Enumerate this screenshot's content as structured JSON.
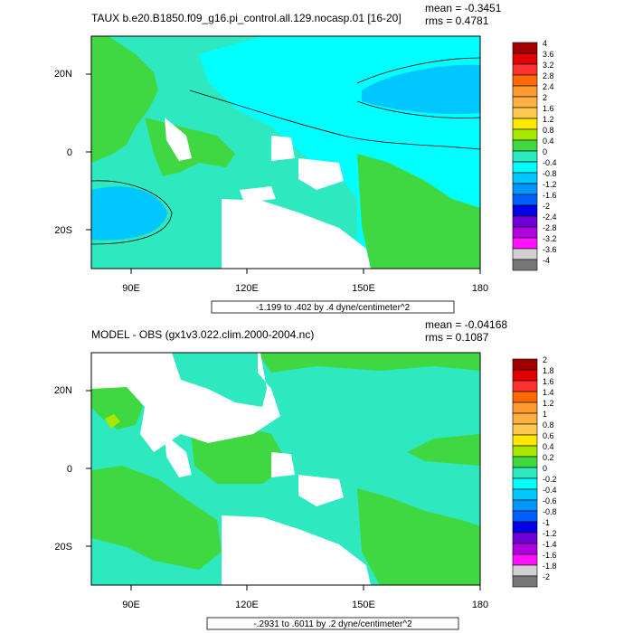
{
  "chart_data": [
    {
      "type": "heatmap",
      "title": "TAUX b.e20.B1850.f09_g16.pi_control.all.129.nocasp.01 [16-20]",
      "stats": [
        "mean = -0.3451",
        "rms = 0.4781"
      ],
      "x_ticks": [
        "90E",
        "120E",
        "150E",
        "180"
      ],
      "y_ticks": [
        "20N",
        "0",
        "20S"
      ],
      "xlim": [
        80,
        180
      ],
      "ylim": [
        -30,
        30
      ],
      "contour_info": "-1.199 to .402 by .4 dyne/centimeter^2",
      "colorbar_labels": [
        "4",
        "3.6",
        "3.2",
        "2.8",
        "2.4",
        "2",
        "1.6",
        "1.2",
        "0.8",
        "0.4",
        "0",
        "-0.4",
        "-0.8",
        "-1.2",
        "-1.6",
        "-2",
        "-2.4",
        "-2.8",
        "-3.2",
        "-3.6",
        "-4"
      ],
      "colorbar_colors": [
        "#a00000",
        "#e00000",
        "#ff3030",
        "#ff6a00",
        "#ff9a30",
        "#ffb040",
        "#ffc850",
        "#ffe800",
        "#a8e800",
        "#40d840",
        "#2ee8c0",
        "#00ffff",
        "#00c8ff",
        "#0098ff",
        "#0060ff",
        "#0000e8",
        "#7000d8",
        "#b000e0",
        "#ff10ff",
        "#d0d0d0",
        "#787878"
      ]
    },
    {
      "type": "heatmap",
      "title": "MODEL - OBS (gx1v3.022.clim.2000-2004.nc)",
      "stats": [
        "mean = -0.04168",
        "rms = 0.1087"
      ],
      "x_ticks": [
        "90E",
        "120E",
        "150E",
        "180"
      ],
      "y_ticks": [
        "20N",
        "0",
        "20S"
      ],
      "xlim": [
        80,
        180
      ],
      "ylim": [
        -30,
        30
      ],
      "contour_info": "-.2931 to .6011 by .2 dyne/centimeter^2",
      "colorbar_labels": [
        "2",
        "1.8",
        "1.6",
        "1.4",
        "1.2",
        "1",
        "0.8",
        "0.6",
        "0.4",
        "0.2",
        "0",
        "-0.2",
        "-0.4",
        "-0.6",
        "-0.8",
        "-1",
        "-1.2",
        "-1.4",
        "-1.6",
        "-1.8",
        "-2"
      ],
      "colorbar_colors": [
        "#a00000",
        "#e00000",
        "#ff3030",
        "#ff6a00",
        "#ff9a30",
        "#ffb040",
        "#ffc850",
        "#ffe800",
        "#a8e800",
        "#40d840",
        "#2ee8c0",
        "#00ffff",
        "#00c8ff",
        "#0098ff",
        "#0060ff",
        "#0000e8",
        "#7000d8",
        "#b000e0",
        "#ff10ff",
        "#d0d0d0",
        "#787878"
      ]
    }
  ]
}
